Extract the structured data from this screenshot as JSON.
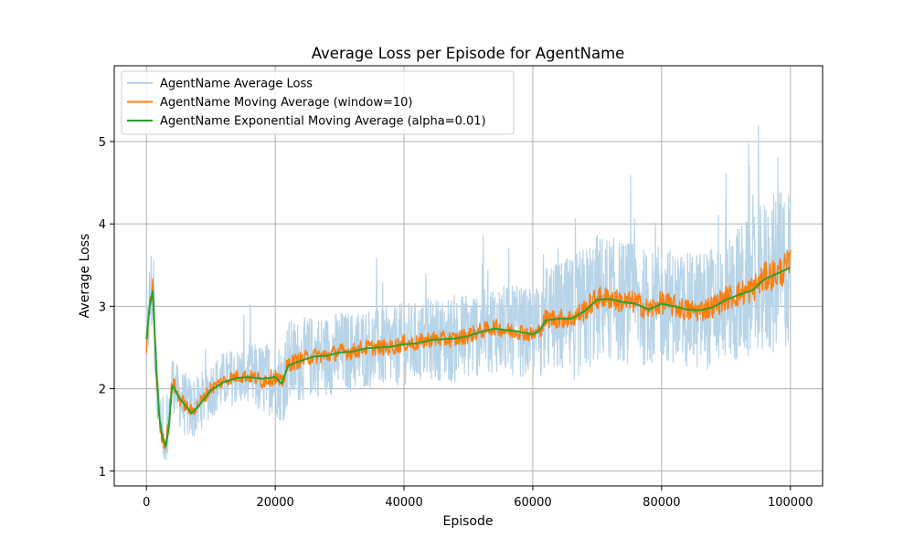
{
  "chart_data": {
    "type": "line",
    "title": "Average Loss per Episode for AgentName",
    "xlabel": "Episode",
    "ylabel": "Average Loss",
    "xlim": [
      -5000,
      105000
    ],
    "ylim": [
      0.82,
      5.92
    ],
    "xticks": [
      0,
      20000,
      40000,
      60000,
      80000,
      100000
    ],
    "xtick_labels": [
      "0",
      "20000",
      "40000",
      "60000",
      "80000",
      "100000"
    ],
    "yticks": [
      1,
      2,
      3,
      4,
      5
    ],
    "ytick_labels": [
      "1",
      "2",
      "3",
      "4",
      "5"
    ],
    "grid": true,
    "legend_position": "top-left",
    "series": [
      {
        "name": "AgentName Average Loss",
        "color": "#b8d4e8",
        "x": [
          0,
          500,
          1000,
          1500,
          2000,
          2500,
          3000,
          3500,
          4000,
          5000,
          6000,
          7000,
          8000,
          9000,
          10000,
          12000,
          14000,
          16000,
          18000,
          20000,
          21000,
          22000,
          24000,
          26000,
          28000,
          30000,
          32000,
          34000,
          36000,
          38000,
          40000,
          42000,
          44000,
          46000,
          48000,
          50000,
          52000,
          54000,
          56000,
          58000,
          60000,
          61000,
          62000,
          64000,
          66000,
          68000,
          70000,
          72000,
          74000,
          76000,
          78000,
          80000,
          82000,
          84000,
          86000,
          88000,
          90000,
          92000,
          94000,
          96000,
          98000,
          100000
        ],
        "values": [
          2.5,
          3.0,
          3.3,
          2.2,
          1.7,
          1.4,
          1.35,
          1.6,
          2.1,
          1.9,
          1.8,
          1.75,
          1.8,
          1.9,
          2.0,
          2.1,
          2.15,
          2.15,
          2.1,
          2.15,
          2.05,
          2.3,
          2.35,
          2.4,
          2.4,
          2.45,
          2.45,
          2.5,
          2.5,
          2.5,
          2.55,
          2.55,
          2.6,
          2.6,
          2.6,
          2.65,
          2.7,
          2.75,
          2.7,
          2.7,
          2.65,
          2.7,
          2.85,
          2.85,
          2.85,
          2.95,
          3.1,
          3.1,
          3.05,
          3.05,
          2.95,
          3.05,
          3.0,
          2.95,
          2.95,
          3.0,
          3.1,
          3.15,
          3.2,
          3.35,
          3.4,
          3.5
        ],
        "spread": [
          0.3,
          0.6,
          0.7,
          0.4,
          0.3,
          0.3,
          0.25,
          0.3,
          0.35,
          0.35,
          0.4,
          0.4,
          0.35,
          0.35,
          0.35,
          0.35,
          0.35,
          0.4,
          0.45,
          0.45,
          0.5,
          0.55,
          0.5,
          0.5,
          0.5,
          0.5,
          0.5,
          0.5,
          0.5,
          0.5,
          0.5,
          0.5,
          0.5,
          0.5,
          0.55,
          0.55,
          0.55,
          0.55,
          0.55,
          0.55,
          0.55,
          0.6,
          0.65,
          0.7,
          0.75,
          0.8,
          0.8,
          0.75,
          0.75,
          0.75,
          0.7,
          0.7,
          0.7,
          0.7,
          0.75,
          0.75,
          0.8,
          0.85,
          0.9,
          0.95,
          1.0,
          1.0
        ]
      },
      {
        "name": "AgentName Moving Average (window=10)",
        "color": "#ff7f0e",
        "x": [
          0,
          500,
          1000,
          1500,
          2000,
          2500,
          3000,
          3500,
          4000,
          5000,
          6000,
          7000,
          8000,
          9000,
          10000,
          12000,
          14000,
          16000,
          18000,
          20000,
          21000,
          22000,
          24000,
          26000,
          28000,
          30000,
          32000,
          34000,
          36000,
          38000,
          40000,
          42000,
          44000,
          46000,
          48000,
          50000,
          52000,
          54000,
          56000,
          58000,
          60000,
          61000,
          62000,
          64000,
          66000,
          68000,
          70000,
          72000,
          74000,
          76000,
          78000,
          80000,
          82000,
          84000,
          86000,
          88000,
          90000,
          92000,
          94000,
          96000,
          98000,
          100000
        ],
        "values": [
          2.5,
          3.0,
          3.2,
          2.2,
          1.6,
          1.4,
          1.35,
          1.6,
          2.1,
          1.9,
          1.8,
          1.72,
          1.8,
          1.9,
          2.0,
          2.1,
          2.15,
          2.15,
          2.1,
          2.15,
          2.05,
          2.3,
          2.35,
          2.4,
          2.4,
          2.45,
          2.45,
          2.5,
          2.5,
          2.5,
          2.55,
          2.55,
          2.6,
          2.6,
          2.6,
          2.65,
          2.7,
          2.75,
          2.7,
          2.7,
          2.65,
          2.7,
          2.85,
          2.85,
          2.85,
          2.95,
          3.1,
          3.1,
          3.05,
          3.05,
          2.95,
          3.05,
          3.0,
          2.95,
          2.95,
          3.0,
          3.1,
          3.15,
          3.2,
          3.35,
          3.4,
          3.5
        ],
        "spread": [
          0.1,
          0.15,
          0.15,
          0.1,
          0.1,
          0.1,
          0.1,
          0.1,
          0.1,
          0.1,
          0.08,
          0.08,
          0.08,
          0.08,
          0.08,
          0.08,
          0.08,
          0.08,
          0.1,
          0.1,
          0.1,
          0.1,
          0.1,
          0.1,
          0.1,
          0.1,
          0.1,
          0.1,
          0.1,
          0.1,
          0.1,
          0.1,
          0.1,
          0.1,
          0.1,
          0.1,
          0.1,
          0.1,
          0.1,
          0.1,
          0.1,
          0.1,
          0.12,
          0.12,
          0.12,
          0.14,
          0.14,
          0.14,
          0.14,
          0.14,
          0.14,
          0.14,
          0.14,
          0.14,
          0.14,
          0.14,
          0.15,
          0.16,
          0.17,
          0.18,
          0.2,
          0.2
        ]
      },
      {
        "name": "AgentName Exponential Moving Average (alpha=0.01)",
        "color": "#2ca02c",
        "x": [
          0,
          500,
          1000,
          1500,
          2000,
          2500,
          3000,
          3500,
          4000,
          5000,
          6000,
          7000,
          8000,
          9000,
          10000,
          12000,
          14000,
          16000,
          18000,
          20000,
          21000,
          22000,
          24000,
          26000,
          28000,
          30000,
          32000,
          34000,
          36000,
          38000,
          40000,
          42000,
          44000,
          46000,
          48000,
          50000,
          52000,
          54000,
          56000,
          58000,
          60000,
          61000,
          62000,
          64000,
          66000,
          68000,
          70000,
          72000,
          74000,
          76000,
          78000,
          80000,
          82000,
          84000,
          86000,
          88000,
          90000,
          92000,
          94000,
          96000,
          98000,
          100000
        ],
        "values": [
          2.6,
          3.0,
          3.2,
          2.3,
          1.65,
          1.4,
          1.3,
          1.55,
          2.05,
          1.9,
          1.8,
          1.7,
          1.78,
          1.88,
          1.98,
          2.08,
          2.13,
          2.14,
          2.12,
          2.14,
          2.06,
          2.28,
          2.34,
          2.39,
          2.4,
          2.44,
          2.45,
          2.49,
          2.5,
          2.51,
          2.54,
          2.55,
          2.59,
          2.6,
          2.61,
          2.64,
          2.69,
          2.73,
          2.71,
          2.69,
          2.66,
          2.7,
          2.83,
          2.85,
          2.85,
          2.94,
          3.08,
          3.09,
          3.05,
          3.03,
          2.96,
          3.03,
          3.0,
          2.96,
          2.95,
          2.99,
          3.08,
          3.14,
          3.19,
          3.33,
          3.4,
          3.47
        ],
        "spread": []
      }
    ]
  }
}
